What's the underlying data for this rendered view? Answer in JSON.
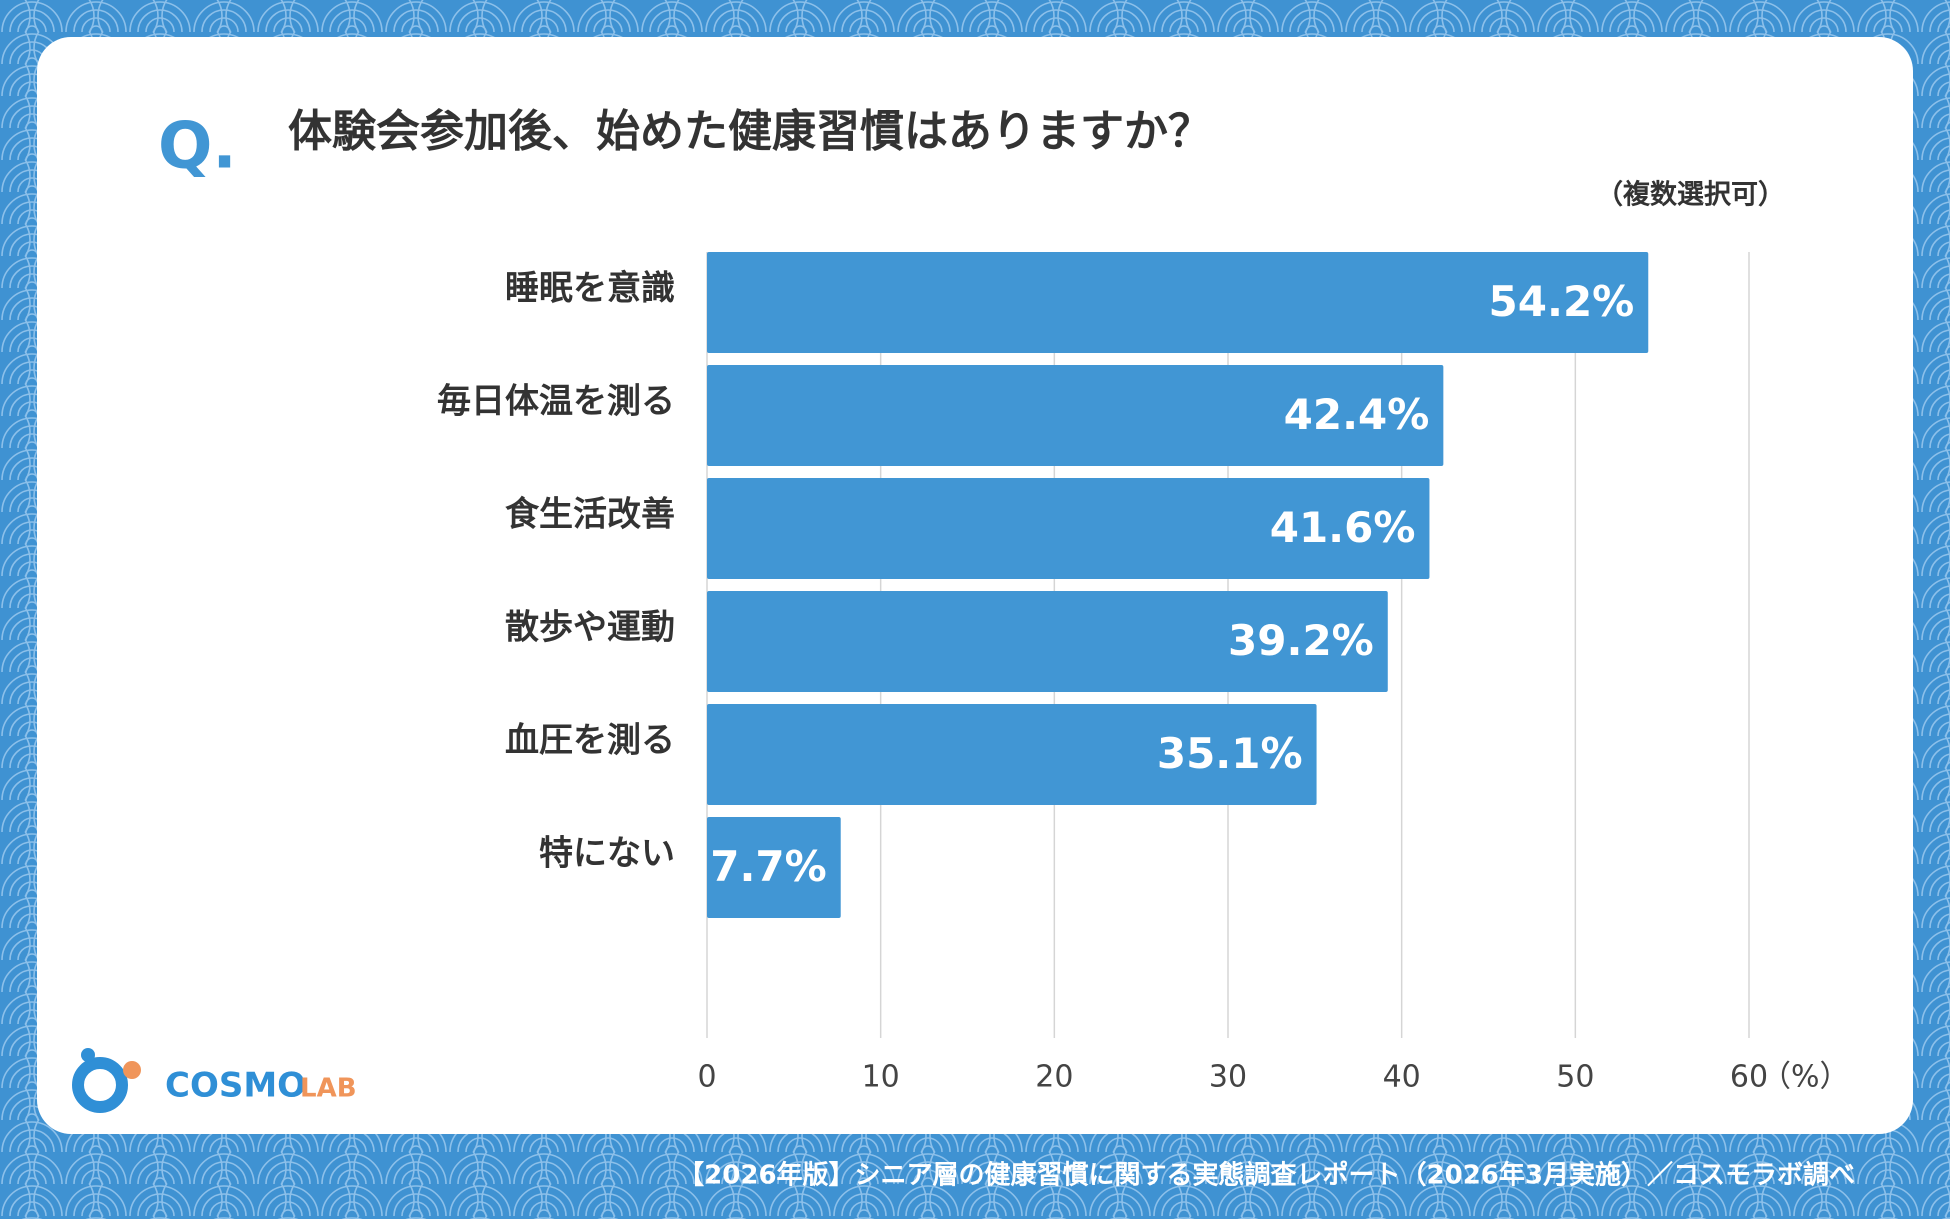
{
  "chart_data": {
    "type": "bar",
    "orientation": "horizontal",
    "question_mark": "Q.",
    "title": "体験会参加後、始めた健康習慣はありますか？",
    "subtitle": "（複数選択可）",
    "categories": [
      "睡眠を意識",
      "毎日体温を測る",
      "食生活改善",
      "散歩や運動",
      "血圧を測る",
      "特にない"
    ],
    "values": [
      54.2,
      42.4,
      41.6,
      39.2,
      35.1,
      7.7
    ],
    "value_labels": [
      "54.2%",
      "42.4%",
      "41.6%",
      "39.2%",
      "35.1%",
      "7.7%"
    ],
    "color": "#4196d4",
    "xlim": [
      0,
      60
    ],
    "xticks": [
      0,
      10,
      20,
      30,
      40,
      50,
      60
    ],
    "x_axis_label": "（%）",
    "grid": true
  },
  "logo": {
    "main": "COSMO",
    "sub": "LAB"
  },
  "footer": "【2026年版】シニア層の健康習慣に関する実態調査レポート（2026年3月実施）／コスモラボ調べ"
}
